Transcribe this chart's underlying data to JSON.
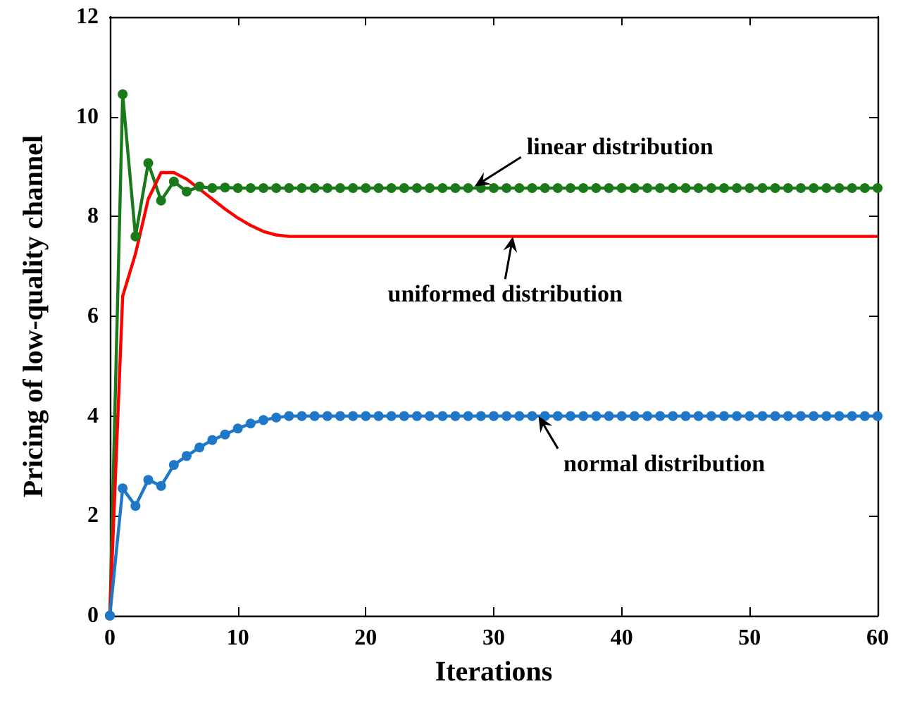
{
  "chart_data": {
    "type": "line",
    "xlabel": "Iterations",
    "ylabel": "Pricing of low-quality channel",
    "xlim": [
      0,
      60
    ],
    "xticks": [
      0,
      10,
      20,
      30,
      40,
      50,
      60
    ],
    "ylim": [
      0,
      12
    ],
    "yticks": [
      0,
      2,
      4,
      6,
      8,
      10,
      12
    ],
    "grid": false,
    "series": [
      {
        "color": "#1a7a1a",
        "marker": "circle",
        "x": [
          0,
          1,
          2,
          3,
          4,
          5,
          6,
          7,
          8,
          9,
          10,
          11,
          12,
          13,
          14,
          15,
          16,
          17,
          18,
          19,
          20,
          21,
          22,
          23,
          24,
          25,
          26,
          27,
          28,
          29,
          30,
          31,
          32,
          33,
          34,
          35,
          36,
          37,
          38,
          39,
          40,
          41,
          42,
          43,
          44,
          45,
          46,
          47,
          48,
          49,
          50,
          51,
          52,
          53,
          54,
          55,
          56,
          57,
          58,
          59,
          60
        ],
        "values": [
          0,
          10.45,
          7.6,
          9.07,
          8.32,
          8.7,
          8.5,
          8.6,
          8.57,
          8.58,
          8.57,
          8.57,
          8.57,
          8.57,
          8.57,
          8.57,
          8.57,
          8.57,
          8.57,
          8.57,
          8.57,
          8.57,
          8.57,
          8.57,
          8.57,
          8.57,
          8.57,
          8.57,
          8.57,
          8.57,
          8.57,
          8.57,
          8.57,
          8.57,
          8.57,
          8.57,
          8.57,
          8.57,
          8.57,
          8.57,
          8.57,
          8.57,
          8.57,
          8.57,
          8.57,
          8.57,
          8.57,
          8.57,
          8.57,
          8.57,
          8.57,
          8.57,
          8.57,
          8.57,
          8.57,
          8.57,
          8.57,
          8.57,
          8.57,
          8.57,
          8.57
        ]
      },
      {
        "color": "#ff0000",
        "marker": "none",
        "x": [
          0,
          1,
          2,
          3,
          4,
          5,
          6,
          7,
          8,
          9,
          10,
          11,
          12,
          13,
          14,
          15,
          20,
          30,
          40,
          50,
          60
        ],
        "values": [
          0,
          6.4,
          7.25,
          8.35,
          8.88,
          8.88,
          8.75,
          8.55,
          8.35,
          8.15,
          7.97,
          7.82,
          7.7,
          7.63,
          7.6,
          7.6,
          7.6,
          7.6,
          7.6,
          7.6,
          7.6
        ]
      },
      {
        "color": "#1f77c8",
        "marker": "circle",
        "x": [
          0,
          1,
          2,
          3,
          4,
          5,
          6,
          7,
          8,
          9,
          10,
          11,
          12,
          13,
          14,
          15,
          16,
          17,
          18,
          19,
          20,
          21,
          22,
          23,
          24,
          25,
          26,
          27,
          28,
          29,
          30,
          31,
          32,
          33,
          34,
          35,
          36,
          37,
          38,
          39,
          40,
          41,
          42,
          43,
          44,
          45,
          46,
          47,
          48,
          49,
          50,
          51,
          52,
          53,
          54,
          55,
          56,
          57,
          58,
          59,
          60
        ],
        "values": [
          0,
          2.55,
          2.2,
          2.72,
          2.6,
          3.02,
          3.2,
          3.37,
          3.52,
          3.63,
          3.75,
          3.85,
          3.92,
          3.97,
          4,
          4,
          4,
          4,
          4,
          4,
          4,
          4,
          4,
          4,
          4,
          4,
          4,
          4,
          4,
          4,
          4,
          4,
          4,
          4,
          4,
          4,
          4,
          4,
          4,
          4,
          4,
          4,
          4,
          4,
          4,
          4,
          4,
          4,
          4,
          4,
          4,
          4,
          4,
          4,
          4,
          4,
          4,
          4,
          4,
          4,
          4
        ]
      }
    ],
    "annotations": [
      {
        "text": "linear distribution",
        "x": 28.5,
        "y": 8.6
      },
      {
        "text": "uniformed distribution",
        "x": 31.5,
        "y": 7.6
      },
      {
        "text": "normal distribution",
        "x": 33.5,
        "y": 4
      }
    ]
  }
}
